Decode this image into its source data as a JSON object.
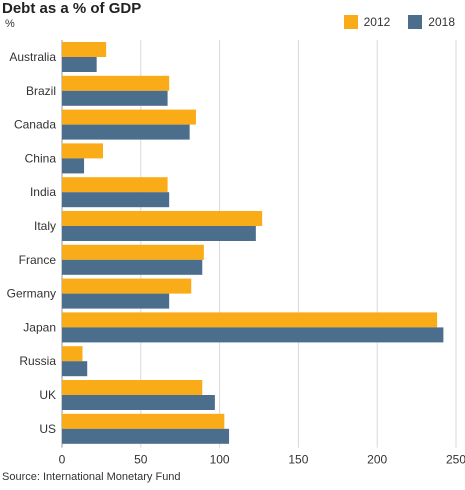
{
  "title": "Debt as a % of GDP",
  "unit": "%",
  "source": "Source: International Monetary Fund",
  "legend": [
    {
      "label": "2012",
      "color": "#FAAB18"
    },
    {
      "label": "2018",
      "color": "#4B6E8C"
    }
  ],
  "chart_data": {
    "type": "bar",
    "orientation": "horizontal",
    "categories": [
      "Australia",
      "Brazil",
      "Canada",
      "China",
      "India",
      "Italy",
      "France",
      "Germany",
      "Japan",
      "Russia",
      "UK",
      "US"
    ],
    "series": [
      {
        "name": "2012",
        "color": "#FAAB18",
        "values": [
          28,
          68,
          85,
          26,
          67,
          127,
          90,
          82,
          238,
          13,
          89,
          103
        ]
      },
      {
        "name": "2018",
        "color": "#4B6E8C",
        "values": [
          22,
          67,
          81,
          14,
          68,
          123,
          89,
          68,
          242,
          16,
          97,
          106
        ]
      }
    ],
    "xticks": [
      "0",
      "50",
      "100",
      "150",
      "200",
      "250"
    ],
    "xlim": [
      0,
      250
    ],
    "grid": true,
    "legend_position": "top-right"
  }
}
